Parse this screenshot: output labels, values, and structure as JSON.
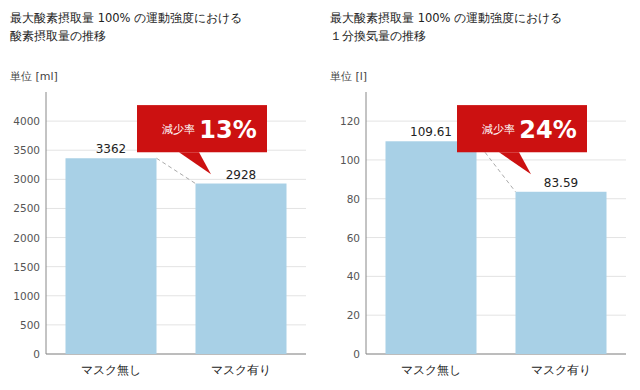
{
  "chart_data": [
    {
      "type": "bar",
      "title": "最大酸素摂取量 100% の運動強度における",
      "subtitle": "酸素摂取量の推移",
      "ylabel": "単位 [ml]",
      "categories": [
        "マスク無し",
        "マスク有り"
      ],
      "values": [
        3362,
        2928
      ],
      "color": "#a8d0e6",
      "ylim": [
        0,
        4500
      ],
      "yticks": [
        0,
        500,
        1000,
        1500,
        2000,
        2500,
        3000,
        3500,
        4000
      ],
      "grid": true,
      "data_labels": true,
      "annotation": {
        "texts": [
          "減少率",
          "13%"
        ],
        "color": "#cc1111"
      }
    },
    {
      "type": "bar",
      "title": "最大酸素摂取量 100% の運動強度における",
      "subtitle": "１分換気量の推移",
      "ylabel": "単位 [l]",
      "categories": [
        "マスク無し",
        "マスク有り"
      ],
      "values": [
        109.61,
        83.59
      ],
      "color": "#a8d0e6",
      "ylim": [
        0,
        135
      ],
      "yticks": [
        0,
        20,
        40,
        60,
        80,
        100,
        120
      ],
      "grid": true,
      "data_labels": true,
      "annotation": {
        "texts": [
          "減少率",
          "24%"
        ],
        "color": "#cc1111"
      }
    }
  ]
}
